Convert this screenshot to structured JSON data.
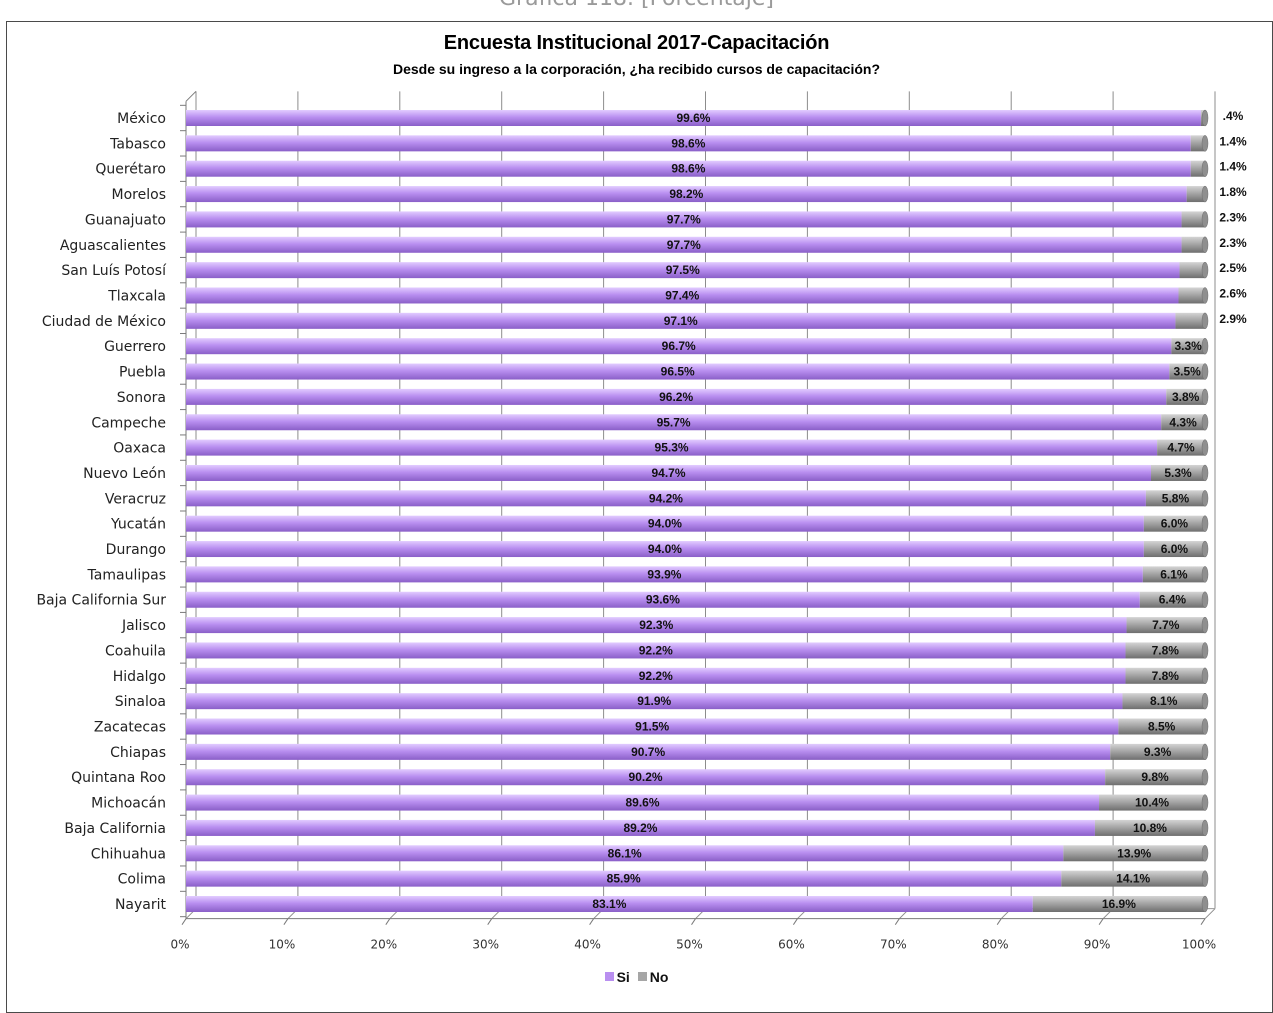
{
  "page": {
    "top_caption": "Gráfica 118. [Porcentaje]"
  },
  "chart_data": {
    "type": "bar",
    "orientation": "horizontal",
    "stacked": "100%",
    "title": "Encuesta Institucional 2017-Capacitación",
    "subtitle": "Desde su ingreso a la corporación, ¿ha recibido cursos de capacitación?",
    "categories": [
      "México",
      "Tabasco",
      "Querétaro",
      "Morelos",
      "Guanajuato",
      "Aguascalientes",
      "San Luís Potosí",
      "Tlaxcala",
      "Ciudad de México",
      "Guerrero",
      "Puebla",
      "Sonora",
      "Campeche",
      "Oaxaca",
      "Nuevo León",
      "Veracruz",
      "Yucatán",
      "Durango",
      "Tamaulipas",
      "Baja California Sur",
      "Jalisco",
      "Coahuila",
      "Hidalgo",
      "Sinaloa",
      "Zacatecas",
      "Chiapas",
      "Quintana Roo",
      "Michoacán",
      "Baja California",
      "Chihuahua",
      "Colima",
      "Nayarit"
    ],
    "series": [
      {
        "name": "Si",
        "color": "#b98ff0",
        "values": [
          99.6,
          98.6,
          98.6,
          98.2,
          97.7,
          97.7,
          97.5,
          97.4,
          97.1,
          96.7,
          96.5,
          96.2,
          95.7,
          95.3,
          94.7,
          94.2,
          94.0,
          94.0,
          93.9,
          93.6,
          92.3,
          92.2,
          92.2,
          91.9,
          91.5,
          90.7,
          90.2,
          89.6,
          89.2,
          86.1,
          85.9,
          83.1
        ],
        "labels": [
          "99.6%",
          "98.6%",
          "98.6%",
          "98.2%",
          "97.7%",
          "97.7%",
          "97.5%",
          "97.4%",
          "97.1%",
          "96.7%",
          "96.5%",
          "96.2%",
          "95.7%",
          "95.3%",
          "94.7%",
          "94.2%",
          "94.0%",
          "94.0%",
          "93.9%",
          "93.6%",
          "92.3%",
          "92.2%",
          "92.2%",
          "91.9%",
          "91.5%",
          "90.7%",
          "90.2%",
          "89.6%",
          "89.2%",
          "86.1%",
          "85.9%",
          "83.1%"
        ]
      },
      {
        "name": "No",
        "color": "#a6a6a6",
        "values": [
          0.4,
          1.4,
          1.4,
          1.8,
          2.3,
          2.3,
          2.5,
          2.6,
          2.9,
          3.3,
          3.5,
          3.8,
          4.3,
          4.7,
          5.3,
          5.8,
          6.0,
          6.0,
          6.1,
          6.4,
          7.7,
          7.8,
          7.8,
          8.1,
          8.5,
          9.3,
          9.8,
          10.4,
          10.8,
          13.9,
          14.1,
          16.9
        ],
        "labels": [
          ".4%",
          "1.4%",
          "1.4%",
          "1.8%",
          "2.3%",
          "2.3%",
          "2.5%",
          "2.6%",
          "2.9%",
          "3.3%",
          "3.5%",
          "3.8%",
          "4.3%",
          "4.7%",
          "5.3%",
          "5.8%",
          "6.0%",
          "6.0%",
          "6.1%",
          "6.4%",
          "7.7%",
          "7.8%",
          "7.8%",
          "8.1%",
          "8.5%",
          "9.3%",
          "9.8%",
          "10.4%",
          "10.8%",
          "13.9%",
          "14.1%",
          "16.9%"
        ]
      }
    ],
    "x_ticks": [
      "0%",
      "10%",
      "20%",
      "30%",
      "40%",
      "50%",
      "60%",
      "70%",
      "80%",
      "90%",
      "100%"
    ],
    "xlim": [
      0,
      100
    ],
    "grid": true,
    "legend": "bottom-center"
  }
}
